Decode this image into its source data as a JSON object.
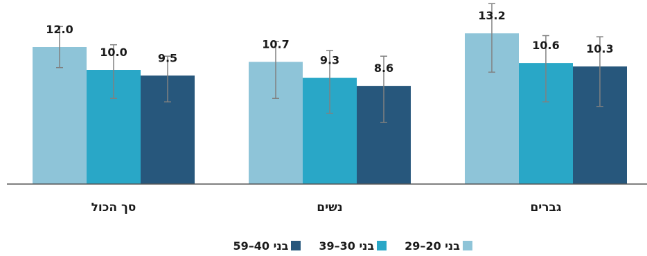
{
  "chart_data": {
    "type": "bar",
    "categories": [
      "סך הכול",
      "נשים",
      "גברים"
    ],
    "series": [
      {
        "name": "בני 20–29",
        "color": "#8ec4d8",
        "values": [
          12.0,
          10.7,
          13.2
        ],
        "error": [
          [
            10.2,
            13.8
          ],
          [
            7.5,
            12.5
          ],
          [
            9.8,
            15.8
          ]
        ]
      },
      {
        "name": "בני 30–39",
        "color": "#29a7c7",
        "values": [
          10.0,
          9.3,
          10.6
        ],
        "error": [
          [
            7.5,
            12.2
          ],
          [
            6.2,
            11.7
          ],
          [
            7.2,
            13.0
          ]
        ]
      },
      {
        "name": "בני 40–59",
        "color": "#27577c",
        "values": [
          9.5,
          8.6,
          10.3
        ],
        "error": [
          [
            7.2,
            11.2
          ],
          [
            5.4,
            11.2
          ],
          [
            6.8,
            12.9
          ]
        ]
      }
    ],
    "value_labels": [
      [
        "12.0",
        "10.7",
        "13.2"
      ],
      [
        "10.0",
        "9.3",
        "10.6"
      ],
      [
        "9.5",
        "8.6",
        "10.3"
      ]
    ],
    "ylim": [
      0,
      16
    ],
    "grid": false,
    "legend_position": "bottom",
    "axis_color": "#555555",
    "errorbar_color": "#808080"
  }
}
